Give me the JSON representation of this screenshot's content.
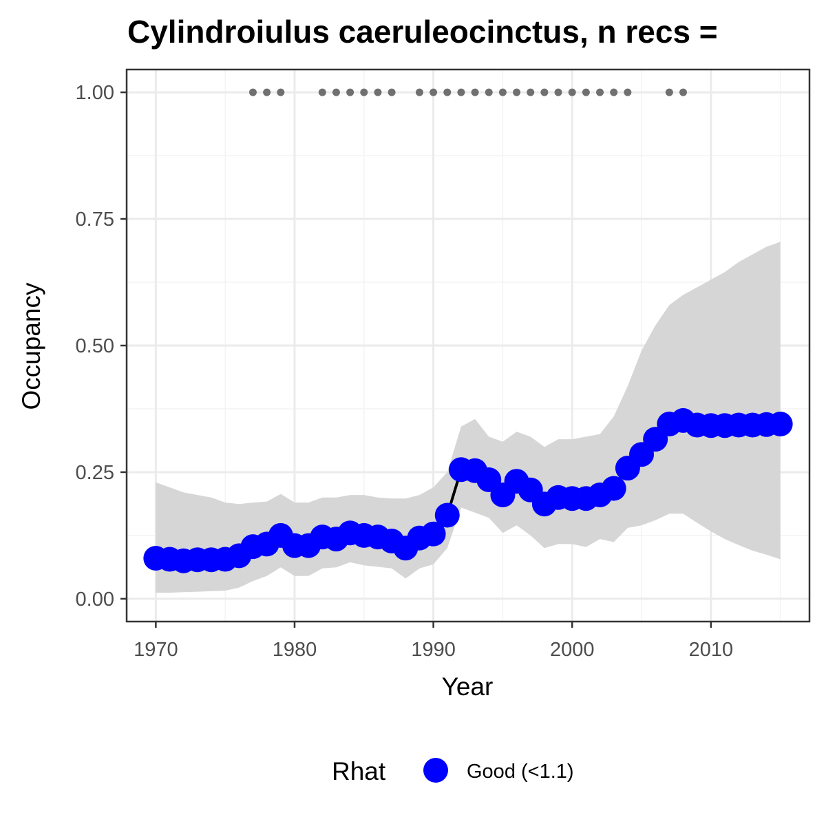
{
  "chart_data": {
    "type": "line",
    "title": "Cylindroiulus caeruleocinctus, n recs =",
    "xlabel": "Year",
    "ylabel": "Occupancy",
    "xlim": [
      1967.9,
      2017.1
    ],
    "ylim": [
      -0.045,
      1.045
    ],
    "x_ticks": [
      1970,
      1980,
      1990,
      2000,
      2010
    ],
    "y_ticks": [
      0.0,
      0.25,
      0.5,
      0.75,
      1.0
    ],
    "y_tick_labels": [
      "0.00",
      "0.25",
      "0.50",
      "0.75",
      "1.00"
    ],
    "grid": true,
    "series": [
      {
        "name": "Occupancy",
        "x": [
          1970,
          1971,
          1972,
          1973,
          1974,
          1975,
          1976,
          1977,
          1978,
          1979,
          1980,
          1981,
          1982,
          1983,
          1984,
          1985,
          1986,
          1987,
          1988,
          1989,
          1990,
          1991,
          1992,
          1993,
          1994,
          1995,
          1996,
          1997,
          1998,
          1999,
          2000,
          2001,
          2002,
          2003,
          2004,
          2005,
          2006,
          2007,
          2008,
          2009,
          2010,
          2011,
          2012,
          2013,
          2014,
          2015
        ],
        "y": [
          0.08,
          0.078,
          0.075,
          0.077,
          0.077,
          0.078,
          0.085,
          0.103,
          0.108,
          0.125,
          0.105,
          0.105,
          0.122,
          0.118,
          0.13,
          0.125,
          0.122,
          0.114,
          0.1,
          0.12,
          0.128,
          0.165,
          0.255,
          0.253,
          0.235,
          0.205,
          0.232,
          0.215,
          0.187,
          0.2,
          0.198,
          0.198,
          0.205,
          0.218,
          0.258,
          0.285,
          0.315,
          0.345,
          0.352,
          0.343,
          0.342,
          0.342,
          0.343,
          0.343,
          0.344,
          0.345
        ],
        "lower": [
          0.012,
          0.012,
          0.013,
          0.014,
          0.015,
          0.016,
          0.022,
          0.035,
          0.045,
          0.062,
          0.045,
          0.045,
          0.06,
          0.062,
          0.072,
          0.066,
          0.063,
          0.06,
          0.04,
          0.06,
          0.068,
          0.1,
          0.18,
          0.17,
          0.16,
          0.13,
          0.145,
          0.125,
          0.1,
          0.108,
          0.108,
          0.102,
          0.118,
          0.112,
          0.14,
          0.145,
          0.155,
          0.168,
          0.168,
          0.15,
          0.133,
          0.118,
          0.106,
          0.095,
          0.087,
          0.078
        ],
        "upper": [
          0.23,
          0.22,
          0.21,
          0.205,
          0.2,
          0.19,
          0.187,
          0.19,
          0.192,
          0.207,
          0.19,
          0.19,
          0.2,
          0.2,
          0.205,
          0.205,
          0.2,
          0.198,
          0.198,
          0.205,
          0.22,
          0.25,
          0.34,
          0.355,
          0.32,
          0.31,
          0.33,
          0.32,
          0.3,
          0.315,
          0.315,
          0.32,
          0.325,
          0.36,
          0.42,
          0.49,
          0.54,
          0.58,
          0.6,
          0.615,
          0.63,
          0.645,
          0.665,
          0.68,
          0.695,
          0.705
        ]
      }
    ],
    "records_years": [
      1977,
      1978,
      1979,
      1982,
      1983,
      1984,
      1985,
      1986,
      1987,
      1989,
      1990,
      1991,
      1992,
      1993,
      1994,
      1995,
      1996,
      1997,
      1998,
      1999,
      2000,
      2001,
      2002,
      2003,
      2004,
      2007,
      2008
    ],
    "records_y": 1.0,
    "colors": {
      "points": "#0000ff",
      "line": "#000000",
      "ribbon": "#d6d6d6",
      "records": "#707070",
      "grid_major": "#ebebeb",
      "grid_minor": "#f3f3f3",
      "panel_border": "#333333"
    },
    "legend": {
      "title": "Rhat",
      "position": "bottom",
      "entries": [
        {
          "label": "Good (<1.1)",
          "color": "#0000ff"
        }
      ]
    }
  }
}
